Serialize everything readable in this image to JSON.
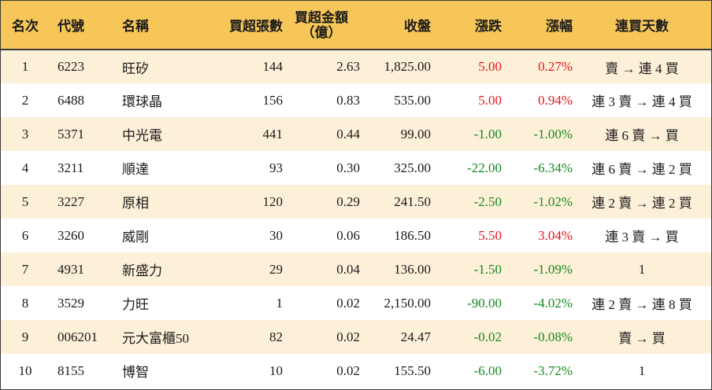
{
  "headers": {
    "rank": "名次",
    "code": "代號",
    "name": "名稱",
    "volume": "買超張數",
    "amount_line1": "買超金額",
    "amount_line2": "（億）",
    "close": "收盤",
    "change": "漲跌",
    "change_pct": "漲幅",
    "streak": "連買天數"
  },
  "colors": {
    "header_bg": "#f7c659",
    "odd_row_bg": "#fdf0d8",
    "up": "#e8141e",
    "down": "#148a1e"
  },
  "rows": [
    {
      "rank": "1",
      "code": "6223",
      "name": "旺矽",
      "volume": "144",
      "amount": "2.63",
      "close": "1,825.00",
      "change": "5.00",
      "change_pct": "0.27%",
      "direction": "up",
      "streak": "賣 → 連 4 買"
    },
    {
      "rank": "2",
      "code": "6488",
      "name": "環球晶",
      "volume": "156",
      "amount": "0.83",
      "close": "535.00",
      "change": "5.00",
      "change_pct": "0.94%",
      "direction": "up",
      "streak": "連 3 賣 → 連 4 買"
    },
    {
      "rank": "3",
      "code": "5371",
      "name": "中光電",
      "volume": "441",
      "amount": "0.44",
      "close": "99.00",
      "change": "-1.00",
      "change_pct": "-1.00%",
      "direction": "down",
      "streak": "連 6 賣 → 買"
    },
    {
      "rank": "4",
      "code": "3211",
      "name": "順達",
      "volume": "93",
      "amount": "0.30",
      "close": "325.00",
      "change": "-22.00",
      "change_pct": "-6.34%",
      "direction": "down",
      "streak": "連 6 賣 → 連 2 買"
    },
    {
      "rank": "5",
      "code": "3227",
      "name": "原相",
      "volume": "120",
      "amount": "0.29",
      "close": "241.50",
      "change": "-2.50",
      "change_pct": "-1.02%",
      "direction": "down",
      "streak": "連 2 賣 → 連 2 買"
    },
    {
      "rank": "6",
      "code": "3260",
      "name": "威剛",
      "volume": "30",
      "amount": "0.06",
      "close": "186.50",
      "change": "5.50",
      "change_pct": "3.04%",
      "direction": "up",
      "streak": "連 3 賣 → 買"
    },
    {
      "rank": "7",
      "code": "4931",
      "name": "新盛力",
      "volume": "29",
      "amount": "0.04",
      "close": "136.00",
      "change": "-1.50",
      "change_pct": "-1.09%",
      "direction": "down",
      "streak": "1"
    },
    {
      "rank": "8",
      "code": "3529",
      "name": "力旺",
      "volume": "1",
      "amount": "0.02",
      "close": "2,150.00",
      "change": "-90.00",
      "change_pct": "-4.02%",
      "direction": "down",
      "streak": "連 2 賣 → 連 8 買"
    },
    {
      "rank": "9",
      "code": "006201",
      "name": "元大富櫃50",
      "volume": "82",
      "amount": "0.02",
      "close": "24.47",
      "change": "-0.02",
      "change_pct": "-0.08%",
      "direction": "down",
      "streak": "賣 → 買"
    },
    {
      "rank": "10",
      "code": "8155",
      "name": "博智",
      "volume": "10",
      "amount": "0.02",
      "close": "155.50",
      "change": "-6.00",
      "change_pct": "-3.72%",
      "direction": "down",
      "streak": "1"
    }
  ]
}
